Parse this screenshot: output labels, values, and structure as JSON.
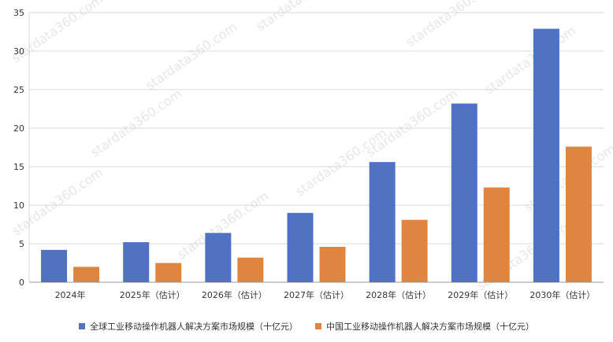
{
  "colors": {
    "series1": "#4F72C2",
    "series2": "#E0853F",
    "grid": "#d9d9d9",
    "axis": "#999999"
  },
  "watermark": "stardata360.com",
  "chart_data": {
    "type": "bar",
    "categories": [
      "2024年",
      "2025年（估计）",
      "2026年（估计）",
      "2027年（估计）",
      "2028年（估计）",
      "2029年（估计）",
      "2030年（估计）"
    ],
    "series": [
      {
        "name": "全球工业移动操作机器人解决方案市场规模（十亿元）",
        "values": [
          4.2,
          5.2,
          6.4,
          9.0,
          15.6,
          23.2,
          32.9
        ]
      },
      {
        "name": "中国工业移动操作机器人解决方案市场规模（十亿元）",
        "values": [
          2.0,
          2.5,
          3.2,
          4.6,
          8.1,
          12.3,
          17.6
        ]
      }
    ],
    "yticks": [
      0,
      5,
      10,
      15,
      20,
      25,
      30,
      35
    ],
    "ylim": [
      0,
      35
    ],
    "grid": true,
    "legend_position": "bottom"
  }
}
